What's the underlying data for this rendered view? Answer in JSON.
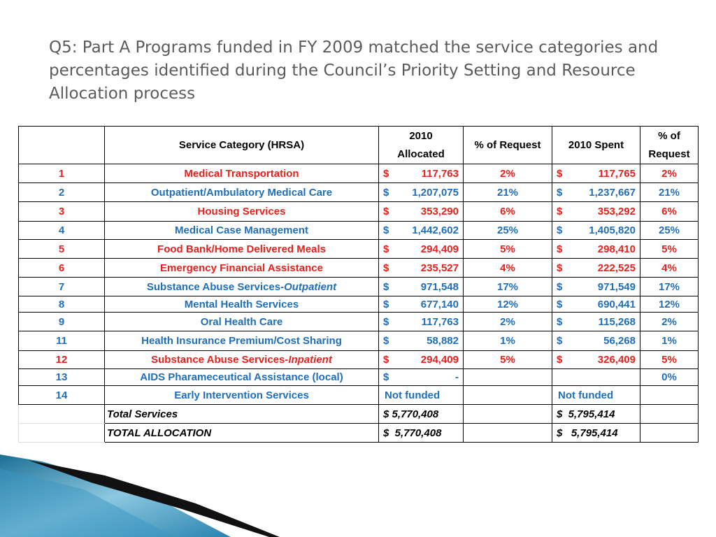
{
  "header": {
    "title": "Q5: Part A Programs funded in FY 2009 matched the service categories and percentages identified during the Council’s Priority Setting and Resource Allocation process"
  },
  "table": {
    "columns": [
      "Service Category (HRSA)",
      "2010 Allocated",
      "% of Request",
      "2010 Spent",
      "% of Request"
    ],
    "rows": [
      {
        "num": "1",
        "service": "Medical Transportation",
        "color": "red",
        "alloc_sym": "$",
        "alloc": "117,763",
        "pct": "2%",
        "spent_sym": "$",
        "spent": "117,765",
        "pct2": "2%"
      },
      {
        "num": "2",
        "service": "Outpatient/Ambulatory Medical Care",
        "color": "blue",
        "alloc_sym": "$",
        "alloc": "1,207,075",
        "pct": "21%",
        "spent_sym": "$",
        "spent": "1,237,667",
        "pct2": "21%"
      },
      {
        "num": "3",
        "service": "Housing Services",
        "color": "red",
        "alloc_sym": "$",
        "alloc": "353,290",
        "pct": "6%",
        "spent_sym": "$",
        "spent": "353,292",
        "pct2": "6%"
      },
      {
        "num": "4",
        "service": "Medical Case Management",
        "color": "blue",
        "alloc_sym": "$",
        "alloc": "1,442,602",
        "pct": "25%",
        "spent_sym": "$",
        "spent": "1,405,820",
        "pct2": "25%"
      },
      {
        "num": "5",
        "service": "Food Bank/Home Delivered Meals",
        "color": "red",
        "alloc_sym": "$",
        "alloc": "294,409",
        "pct": "5%",
        "spent_sym": "$",
        "spent": "298,410",
        "pct2": "5%"
      },
      {
        "num": "6",
        "service": "Emergency Financial Assistance",
        "color": "red",
        "alloc_sym": "$",
        "alloc": "235,527",
        "pct": "4%",
        "spent_sym": "$",
        "spent": "222,525",
        "pct2": "4%"
      },
      {
        "num": "7",
        "service": "Substance Abuse Services-",
        "service_italic": "Outpatient",
        "color": "blue",
        "alloc_sym": "$",
        "alloc": "971,548",
        "pct": "17%",
        "spent_sym": "$",
        "spent": "971,549",
        "pct2": "17%"
      },
      {
        "num": "8",
        "service": "Mental Health Services",
        "color": "blue",
        "alloc_sym": "$",
        "alloc": "677,140",
        "pct": "12%",
        "spent_sym": "$",
        "spent": "690,441",
        "pct2": "12%"
      },
      {
        "num": "9",
        "service": "Oral Health Care",
        "color": "blue",
        "alloc_sym": "$",
        "alloc": "117,763",
        "pct": "2%",
        "spent_sym": "$",
        "spent": "115,268",
        "pct2": "2%"
      },
      {
        "num": "11",
        "service": "Health Insurance Premium/Cost Sharing",
        "color": "blue",
        "alloc_sym": "$",
        "alloc": "58,882",
        "pct": "1%",
        "spent_sym": "$",
        "spent": "56,268",
        "pct2": "1%"
      },
      {
        "num": "12",
        "service": "Substance Abuse Services-",
        "service_italic": "Inpatient",
        "color": "red",
        "alloc_sym": "$",
        "alloc": "294,409",
        "pct": "5%",
        "spent_sym": "$",
        "spent": "326,409",
        "pct2": "5%"
      },
      {
        "num": "13",
        "service": "AIDS Pharameceutical Assistance (local)",
        "color": "blue",
        "alloc_sym": "$",
        "alloc": "-",
        "pct2": "0%"
      },
      {
        "num": "14",
        "service": "Early Intervention Services",
        "color": "blue",
        "alloc_text": "Not funded",
        "spent_text": "Not funded"
      }
    ],
    "totals": [
      {
        "label": "Total Services",
        "alloc": "$ 5,770,408",
        "spent": "$  5,795,414"
      },
      {
        "label": "TOTAL ALLOCATION",
        "alloc": "$  5,770,408",
        "spent": "$   5,795,414"
      }
    ]
  }
}
